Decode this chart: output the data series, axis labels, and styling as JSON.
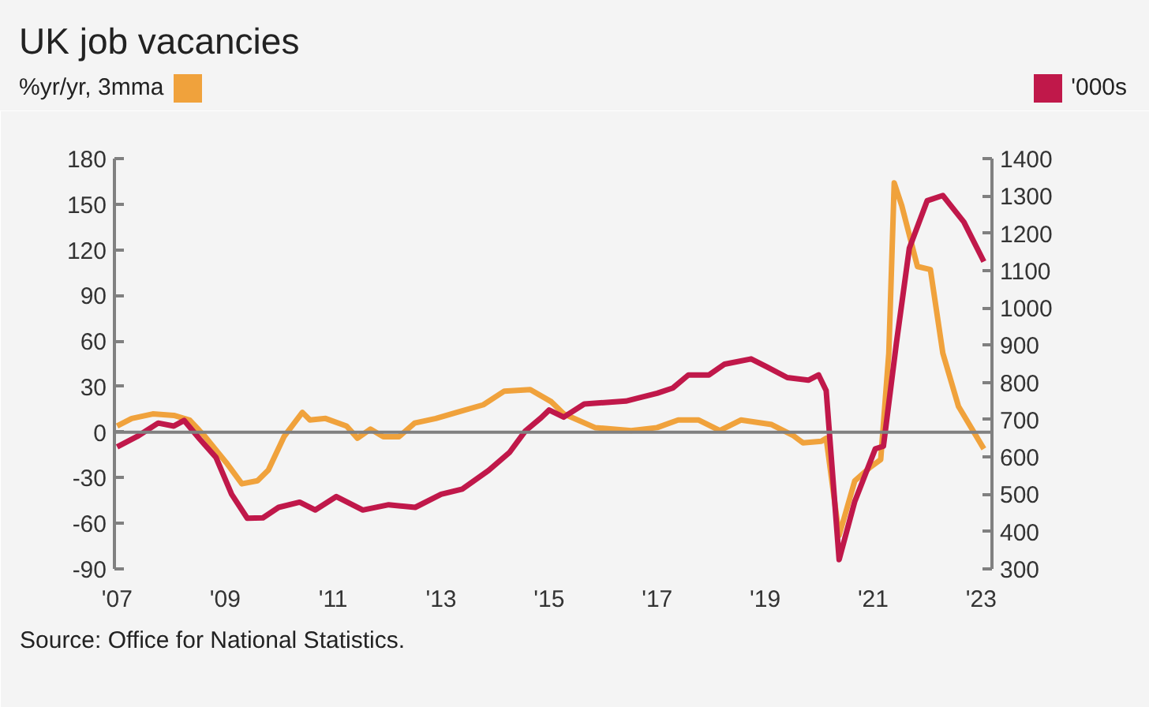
{
  "chart_data": {
    "type": "line",
    "title": "UK job vacancies",
    "ylabel": "%yr/yr, 3mma",
    "y2label": "'000s",
    "annotations": [
      "Source: Office for National Statistics."
    ],
    "xlim": [
      2006.95,
      2023.2
    ],
    "xticks": [
      {
        "value": 2007,
        "label": "'07"
      },
      {
        "value": 2009,
        "label": "'09"
      },
      {
        "value": 2011,
        "label": "'11"
      },
      {
        "value": 2013,
        "label": "'13"
      },
      {
        "value": 2015,
        "label": "'15"
      },
      {
        "value": 2017,
        "label": "'17"
      },
      {
        "value": 2019,
        "label": "'19"
      },
      {
        "value": 2021,
        "label": "'21"
      },
      {
        "value": 2023,
        "label": "'23"
      }
    ],
    "ylim": [
      -90,
      180
    ],
    "yticks": [
      -90,
      -60,
      -30,
      0,
      30,
      60,
      90,
      120,
      150,
      180
    ],
    "y2lim": [
      300,
      1400
    ],
    "y2ticks": [
      300,
      400,
      500,
      600,
      700,
      800,
      900,
      1000,
      1100,
      1200,
      1300,
      1400
    ],
    "ref_lines": [
      {
        "axis": "y",
        "value": 0,
        "color": "#808080"
      }
    ],
    "grid": false,
    "series": [
      {
        "color": "#f0a23c",
        "x": [
          2007.0,
          2007.27,
          2007.66,
          2008.05,
          2008.34,
          2008.63,
          2009.02,
          2009.31,
          2009.6,
          2009.8,
          2010.09,
          2010.43,
          2010.57,
          2010.86,
          2011.25,
          2011.45,
          2011.69,
          2011.93,
          2012.22,
          2012.51,
          2012.9,
          2013.29,
          2013.78,
          2014.17,
          2014.65,
          2015.04,
          2015.27,
          2015.85,
          2016.52,
          2017.0,
          2017.39,
          2017.77,
          2018.16,
          2018.55,
          2019.12,
          2019.51,
          2019.7,
          2020.04,
          2020.13,
          2020.37,
          2020.66,
          2020.95,
          2021.14,
          2021.29,
          2021.39,
          2021.53,
          2021.82,
          2022.06,
          2022.29,
          2022.58,
          2023.05
        ],
        "values": [
          4,
          9,
          12,
          11,
          8,
          -3,
          -20,
          -34,
          -32,
          -25,
          -3,
          13,
          8,
          9,
          4,
          -4,
          2,
          -3,
          -3,
          6,
          9,
          13,
          18,
          27,
          28,
          20,
          12,
          3,
          1,
          3,
          8,
          8,
          1,
          8,
          5,
          -2,
          -7,
          -6,
          -4,
          -68,
          -32,
          -23,
          -18,
          52,
          164,
          149,
          109,
          107,
          52,
          17,
          -11
        ]
      },
      {
        "color": "#c0184a",
        "axis": "y2",
        "x": [
          2007.0,
          2007.37,
          2007.76,
          2008.05,
          2008.24,
          2008.53,
          2008.83,
          2009.12,
          2009.41,
          2009.7,
          2009.99,
          2010.38,
          2010.67,
          2011.06,
          2011.55,
          2012.03,
          2012.52,
          2013.0,
          2013.39,
          2013.88,
          2014.27,
          2014.56,
          2014.85,
          2015.0,
          2015.27,
          2015.65,
          2016.42,
          2017.0,
          2017.29,
          2017.58,
          2017.96,
          2018.25,
          2018.74,
          2019.03,
          2019.41,
          2019.8,
          2019.99,
          2020.13,
          2020.37,
          2020.66,
          2021.04,
          2021.19,
          2021.43,
          2021.67,
          2022.0,
          2022.29,
          2022.68,
          2023.05
        ],
        "values": [
          627,
          655,
          691,
          683,
          698,
          648,
          599,
          500,
          436,
          437,
          465,
          479,
          458,
          494,
          458,
          472,
          465,
          500,
          514,
          564,
          613,
          670,
          705,
          726,
          707,
          742,
          750,
          771,
          785,
          820,
          820,
          849,
          863,
          842,
          813,
          806,
          820,
          778,
          325,
          481,
          622,
          629,
          905,
          1160,
          1287,
          1301,
          1230,
          1124
        ]
      }
    ]
  }
}
